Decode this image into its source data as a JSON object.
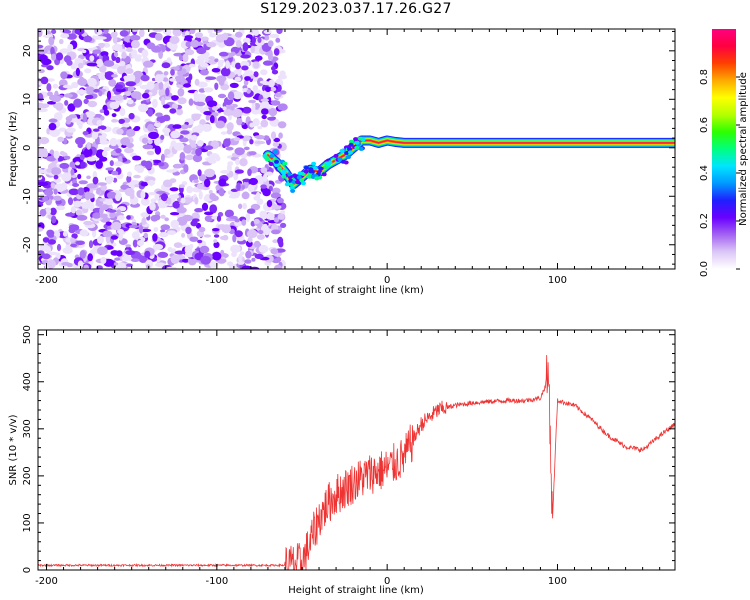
{
  "title": "S129.2023.037.17.26.G27",
  "chart_data": [
    {
      "type": "heatmap",
      "name": "spectrogram",
      "xlabel": "Height of straight line (km)",
      "ylabel": "Frequency (Hz)",
      "xlim": [
        -205,
        169
      ],
      "ylim": [
        -25,
        24.5
      ],
      "xticks": [
        -200,
        -100,
        0,
        100
      ],
      "yticks": [
        -20,
        -10,
        0,
        10,
        20
      ],
      "colorbar": {
        "label": "Normalized spectral amplitude",
        "range": [
          0,
          1
        ],
        "ticks": [
          0.0,
          0.2,
          0.4,
          0.6,
          0.8
        ],
        "colormap": [
          "#ffffff",
          "#dcc7f7",
          "#a463f2",
          "#6a00ff",
          "#1f1fff",
          "#0099ff",
          "#00e5ff",
          "#00ff7f",
          "#2dff00",
          "#b5ff00",
          "#ffff00",
          "#ffaa00",
          "#ff4000",
          "#ff0040",
          "#ff007f"
        ]
      },
      "noise_region": {
        "x_range": [
          -205,
          -61
        ],
        "y_range": [
          -25,
          24.5
        ],
        "description_level": "random amplitude 0.0-0.5"
      },
      "signal_track": [
        {
          "x": -70,
          "freq": -1.5
        },
        {
          "x": -65,
          "freq": -3
        },
        {
          "x": -60,
          "freq": -5
        },
        {
          "x": -55,
          "freq": -7.5
        },
        {
          "x": -50,
          "freq": -6
        },
        {
          "x": -45,
          "freq": -4.5
        },
        {
          "x": -40,
          "freq": -5
        },
        {
          "x": -35,
          "freq": -3.5
        },
        {
          "x": -30,
          "freq": -2.5
        },
        {
          "x": -25,
          "freq": -1.5
        },
        {
          "x": -20,
          "freq": 0
        },
        {
          "x": -15,
          "freq": 1.5
        },
        {
          "x": -10,
          "freq": 1.5
        },
        {
          "x": -5,
          "freq": 1
        },
        {
          "x": 0,
          "freq": 1.5
        },
        {
          "x": 5,
          "freq": 1.2
        },
        {
          "x": 10,
          "freq": 1
        },
        {
          "x": 169,
          "freq": 1
        }
      ]
    },
    {
      "type": "line",
      "name": "snr",
      "xlabel": "Height of straight line (km)",
      "ylabel": "SNR (10 * v/v)",
      "xlim": [
        -205,
        169
      ],
      "ylim": [
        0,
        510
      ],
      "xticks": [
        -200,
        -100,
        0,
        100
      ],
      "yticks": [
        0,
        100,
        200,
        300,
        400,
        500
      ],
      "color": "#ee3333",
      "series": [
        {
          "name": "SNR envelope",
          "x": [
            -205,
            -150,
            -100,
            -60,
            -50,
            -45,
            -40,
            -35,
            -30,
            -20,
            -10,
            0,
            10,
            20,
            30,
            40,
            50,
            60,
            70,
            80,
            90,
            95,
            97,
            100,
            110,
            120,
            130,
            140,
            150,
            160,
            169
          ],
          "y": [
            10,
            10,
            10,
            10,
            15,
            60,
            110,
            140,
            160,
            185,
            205,
            215,
            240,
            310,
            340,
            350,
            355,
            358,
            360,
            360,
            365,
            410,
            100,
            360,
            350,
            320,
            285,
            262,
            255,
            285,
            310
          ]
        }
      ]
    }
  ]
}
